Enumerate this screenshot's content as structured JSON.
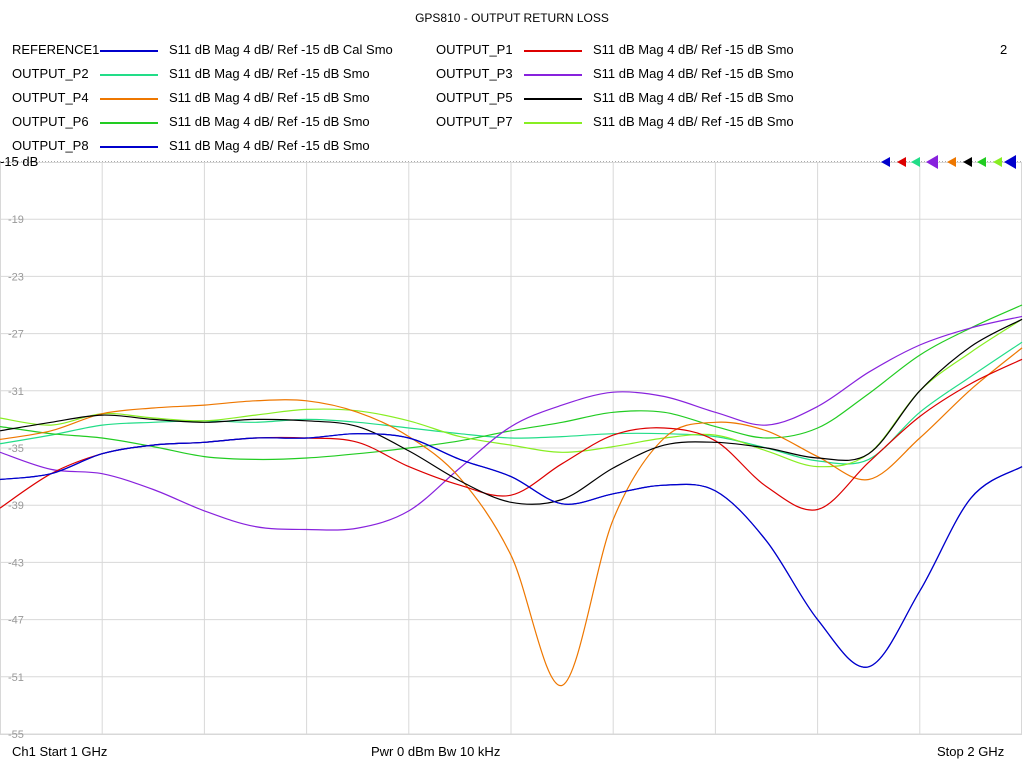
{
  "window": {
    "title": "GPS810 - OUTPUT RETURN LOSS",
    "channel_number": "2"
  },
  "footer": {
    "start": "Ch1  Start  1 GHz",
    "power_bw": "Pwr  0 dBm  Bw  10 kHz",
    "stop": "Stop  2 GHz"
  },
  "ref_label": "-15 dB",
  "legend": [
    {
      "name": "REFERENCE1",
      "desc": "S11  dB Mag  4 dB/ Ref -15 dB  Cal Smo",
      "color": "#0000cc"
    },
    {
      "name": "OUTPUT_P1",
      "desc": "S11  dB Mag  4 dB/ Ref -15 dB  Smo",
      "color": "#dd0000"
    },
    {
      "name": "OUTPUT_P2",
      "desc": "S11  dB Mag  4 dB/ Ref -15 dB  Smo",
      "color": "#22dd88"
    },
    {
      "name": "OUTPUT_P3",
      "desc": "S11  dB Mag  4 dB/ Ref -15 dB  Smo",
      "color": "#8822dd"
    },
    {
      "name": "OUTPUT_P4",
      "desc": "S11  dB Mag  4 dB/ Ref -15 dB  Smo",
      "color": "#ee7700"
    },
    {
      "name": "OUTPUT_P5",
      "desc": "S11  dB Mag  4 dB/ Ref -15 dB  Smo",
      "color": "#000000"
    },
    {
      "name": "OUTPUT_P6",
      "desc": "S11  dB Mag  4 dB/ Ref -15 dB  Smo",
      "color": "#22cc22"
    },
    {
      "name": "OUTPUT_P7",
      "desc": "S11  dB Mag  4 dB/ Ref -15 dB  Smo",
      "color": "#88ee22"
    },
    {
      "name": "OUTPUT_P8",
      "desc": "S11  dB Mag  4 dB/ Ref -15 dB  Smo",
      "color": "#0000cc"
    }
  ],
  "chart_data": {
    "type": "line",
    "title": "GPS810 - OUTPUT RETURN LOSS",
    "xlabel": "",
    "ylabel": "",
    "x_unit": "GHz",
    "xlim": [
      1,
      2
    ],
    "ylim": [
      -55,
      -15
    ],
    "y_ticks": [
      -15,
      -19,
      -23,
      -27,
      -31,
      -35,
      -39,
      -43,
      -47,
      -51,
      -55
    ],
    "y_tick_labels": [
      "-15",
      "-19",
      "-23",
      "-27",
      "-31",
      "-35",
      "-39",
      "-43",
      "-47",
      "-51",
      "-55"
    ],
    "x_gridlines": 10,
    "grid": true,
    "x": [
      1.0,
      1.05,
      1.1,
      1.15,
      1.2,
      1.25,
      1.3,
      1.35,
      1.4,
      1.45,
      1.5,
      1.55,
      1.6,
      1.65,
      1.7,
      1.75,
      1.8,
      1.85,
      1.9,
      1.95,
      2.0
    ],
    "series": [
      {
        "name": "REFERENCE1",
        "color": "#0000cc",
        "values": [
          -37.2,
          -36.8,
          -35.4,
          -34.8,
          -34.6,
          -34.3,
          -34.3,
          -34.0,
          -34.3,
          -35.8,
          -37.0,
          -38.9,
          -38.2,
          -37.6,
          -38.0,
          -41.5,
          -47.0,
          -50.3,
          -45.0,
          -38.5,
          -36.3
        ]
      },
      {
        "name": "OUTPUT_P1",
        "color": "#dd0000",
        "values": [
          -39.2,
          -36.8,
          -35.4,
          -34.8,
          -34.6,
          -34.3,
          -34.3,
          -34.6,
          -36.3,
          -37.6,
          -38.3,
          -36.1,
          -34.1,
          -33.6,
          -34.5,
          -37.7,
          -39.3,
          -36.0,
          -32.8,
          -30.5,
          -28.8
        ]
      },
      {
        "name": "OUTPUT_P2",
        "color": "#22dd88",
        "values": [
          -34.7,
          -34.1,
          -33.4,
          -33.2,
          -33.1,
          -33.2,
          -33.0,
          -33.2,
          -33.6,
          -34.0,
          -34.3,
          -34.2,
          -34.0,
          -34.0,
          -34.2,
          -35.0,
          -35.9,
          -35.8,
          -32.5,
          -30.0,
          -27.6
        ]
      },
      {
        "name": "OUTPUT_P3",
        "color": "#8822dd",
        "values": [
          -35.3,
          -36.5,
          -36.8,
          -37.9,
          -39.4,
          -40.5,
          -40.7,
          -40.6,
          -39.4,
          -36.4,
          -33.5,
          -32.0,
          -31.1,
          -31.4,
          -32.5,
          -33.4,
          -32.1,
          -29.7,
          -27.8,
          -26.6,
          -25.8
        ]
      },
      {
        "name": "OUTPUT_P4",
        "color": "#ee7700",
        "values": [
          -34.4,
          -33.8,
          -32.6,
          -32.2,
          -32.0,
          -31.7,
          -31.7,
          -32.5,
          -34.2,
          -37.1,
          -42.5,
          -51.6,
          -40.0,
          -34.3,
          -33.2,
          -33.8,
          -35.6,
          -37.2,
          -34.3,
          -30.9,
          -28.0
        ]
      },
      {
        "name": "OUTPUT_P5",
        "color": "#000000",
        "values": [
          -33.8,
          -33.2,
          -32.7,
          -33.0,
          -33.2,
          -33.0,
          -33.1,
          -33.5,
          -35.2,
          -37.3,
          -38.8,
          -38.6,
          -36.4,
          -34.8,
          -34.6,
          -35.0,
          -35.7,
          -35.4,
          -31.0,
          -27.9,
          -26.0
        ]
      },
      {
        "name": "OUTPUT_P6",
        "color": "#22cc22",
        "values": [
          -33.5,
          -34.0,
          -34.3,
          -34.9,
          -35.6,
          -35.8,
          -35.7,
          -35.4,
          -35.0,
          -34.5,
          -33.8,
          -33.2,
          -32.5,
          -32.5,
          -33.5,
          -34.3,
          -33.6,
          -31.2,
          -28.5,
          -26.6,
          -25.0
        ]
      },
      {
        "name": "OUTPUT_P7",
        "color": "#88ee22",
        "values": [
          -32.9,
          -33.4,
          -32.6,
          -32.9,
          -33.1,
          -32.7,
          -32.3,
          -32.4,
          -33.1,
          -34.2,
          -34.8,
          -35.3,
          -34.9,
          -34.3,
          -34.1,
          -35.2,
          -36.3,
          -35.4,
          -31.0,
          -28.3,
          -26.0
        ]
      },
      {
        "name": "OUTPUT_P8",
        "color": "#0000cc",
        "values": [
          -37.2,
          -36.8,
          -35.4,
          -34.8,
          -34.6,
          -34.3,
          -34.3,
          -34.0,
          -34.3,
          -35.8,
          -37.0,
          -38.9,
          -38.2,
          -37.6,
          -38.0,
          -41.5,
          -47.0,
          -50.3,
          -45.0,
          -38.5,
          -36.3
        ]
      }
    ]
  }
}
